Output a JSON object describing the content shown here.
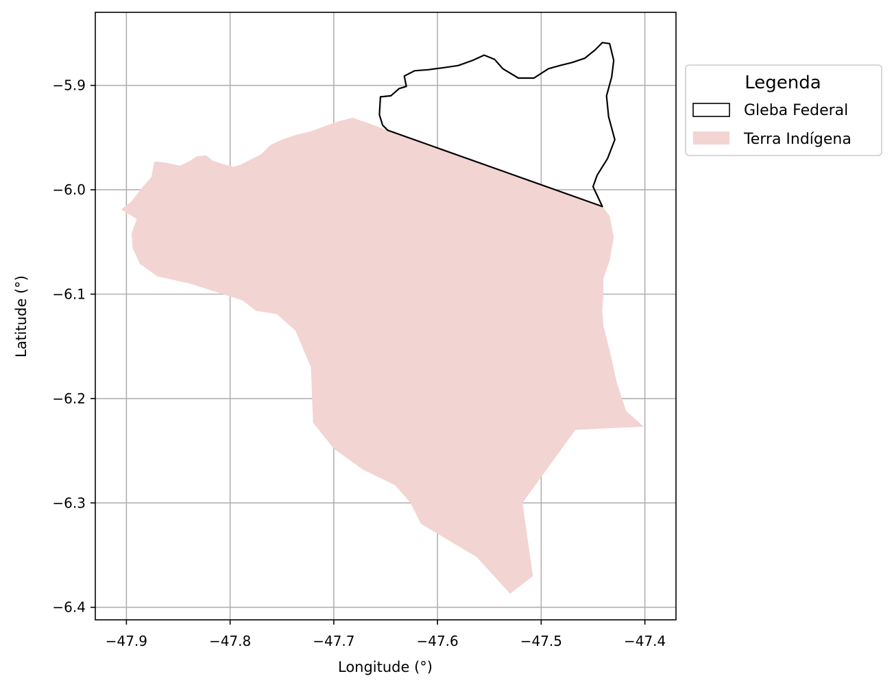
{
  "chart_data": {
    "type": "map",
    "xlabel": "Longitude (°)",
    "ylabel": "Latitude (°)",
    "xlim": [
      -47.93,
      -47.37
    ],
    "ylim": [
      -6.412,
      -5.83
    ],
    "xticks": [
      -47.9,
      -47.8,
      -47.7,
      -47.6,
      -47.5,
      -47.4
    ],
    "yticks": [
      -5.9,
      -6.0,
      -6.1,
      -6.2,
      -6.3,
      -6.4
    ],
    "x_tick_labels": [
      "−47.9",
      "−47.8",
      "−47.7",
      "−47.6",
      "−47.5",
      "−47.4"
    ],
    "y_tick_labels": [
      "−5.9",
      "−6.0",
      "−6.1",
      "−6.2",
      "−6.3",
      "−6.4"
    ],
    "grid": true,
    "legend": {
      "title": "Legenda",
      "placement": "outside-upper-right",
      "entries": [
        {
          "label": "Gleba Federal",
          "style": "outline",
          "color": "#000000"
        },
        {
          "label": "Terra Indígena",
          "style": "fill",
          "color": "#f2d4d3"
        }
      ]
    },
    "layers": {
      "terra_indigena": {
        "fill": "#f2d4d3",
        "coordinates": [
          [
            -47.905,
            -6.019
          ],
          [
            -47.895,
            -6.011
          ],
          [
            -47.885,
            -5.998
          ],
          [
            -47.876,
            -5.988
          ],
          [
            -47.873,
            -5.973
          ],
          [
            -47.862,
            -5.974
          ],
          [
            -47.848,
            -5.977
          ],
          [
            -47.84,
            -5.973
          ],
          [
            -47.832,
            -5.968
          ],
          [
            -47.823,
            -5.967
          ],
          [
            -47.817,
            -5.972
          ],
          [
            -47.808,
            -5.975
          ],
          [
            -47.797,
            -5.978
          ],
          [
            -47.79,
            -5.976
          ],
          [
            -47.782,
            -5.972
          ],
          [
            -47.77,
            -5.966
          ],
          [
            -47.761,
            -5.957
          ],
          [
            -47.75,
            -5.952
          ],
          [
            -47.735,
            -5.947
          ],
          [
            -47.722,
            -5.944
          ],
          [
            -47.706,
            -5.938
          ],
          [
            -47.694,
            -5.934
          ],
          [
            -47.682,
            -5.931
          ],
          [
            -47.67,
            -5.935
          ],
          [
            -47.648,
            -5.943
          ],
          [
            -47.441,
            -6.016
          ],
          [
            -47.434,
            -6.025
          ],
          [
            -47.43,
            -6.045
          ],
          [
            -47.434,
            -6.068
          ],
          [
            -47.44,
            -6.085
          ],
          [
            -47.44,
            -6.1
          ],
          [
            -47.441,
            -6.115
          ],
          [
            -47.44,
            -6.13
          ],
          [
            -47.433,
            -6.158
          ],
          [
            -47.427,
            -6.185
          ],
          [
            -47.418,
            -6.212
          ],
          [
            -47.401,
            -6.227
          ],
          [
            -47.467,
            -6.23
          ],
          [
            -47.518,
            -6.3
          ],
          [
            -47.508,
            -6.37
          ],
          [
            -47.53,
            -6.387
          ],
          [
            -47.562,
            -6.352
          ],
          [
            -47.616,
            -6.32
          ],
          [
            -47.626,
            -6.3
          ],
          [
            -47.641,
            -6.283
          ],
          [
            -47.672,
            -6.268
          ],
          [
            -47.7,
            -6.248
          ],
          [
            -47.72,
            -6.223
          ],
          [
            -47.722,
            -6.17
          ],
          [
            -47.737,
            -6.135
          ],
          [
            -47.755,
            -6.119
          ],
          [
            -47.775,
            -6.116
          ],
          [
            -47.788,
            -6.106
          ],
          [
            -47.81,
            -6.099
          ],
          [
            -47.838,
            -6.09
          ],
          [
            -47.87,
            -6.083
          ],
          [
            -47.887,
            -6.071
          ],
          [
            -47.894,
            -6.056
          ],
          [
            -47.895,
            -6.042
          ],
          [
            -47.89,
            -6.028
          ]
        ]
      },
      "gleba_federal": {
        "stroke": "#000000",
        "coordinates": [
          [
            -47.648,
            -5.943
          ],
          [
            -47.653,
            -5.938
          ],
          [
            -47.656,
            -5.928
          ],
          [
            -47.655,
            -5.911
          ],
          [
            -47.645,
            -5.91
          ],
          [
            -47.637,
            -5.903
          ],
          [
            -47.63,
            -5.901
          ],
          [
            -47.632,
            -5.891
          ],
          [
            -47.622,
            -5.886
          ],
          [
            -47.609,
            -5.885
          ],
          [
            -47.594,
            -5.883
          ],
          [
            -47.58,
            -5.881
          ],
          [
            -47.566,
            -5.876
          ],
          [
            -47.555,
            -5.871
          ],
          [
            -47.545,
            -5.875
          ],
          [
            -47.537,
            -5.884
          ],
          [
            -47.522,
            -5.893
          ],
          [
            -47.507,
            -5.893
          ],
          [
            -47.493,
            -5.884
          ],
          [
            -47.482,
            -5.881
          ],
          [
            -47.47,
            -5.878
          ],
          [
            -47.458,
            -5.874
          ],
          [
            -47.448,
            -5.866
          ],
          [
            -47.441,
            -5.859
          ],
          [
            -47.434,
            -5.86
          ],
          [
            -47.43,
            -5.876
          ],
          [
            -47.432,
            -5.892
          ],
          [
            -47.437,
            -5.91
          ],
          [
            -47.435,
            -5.93
          ],
          [
            -47.429,
            -5.952
          ],
          [
            -47.436,
            -5.97
          ],
          [
            -47.446,
            -5.986
          ],
          [
            -47.45,
            -5.997
          ],
          [
            -47.441,
            -6.016
          ]
        ]
      }
    }
  }
}
